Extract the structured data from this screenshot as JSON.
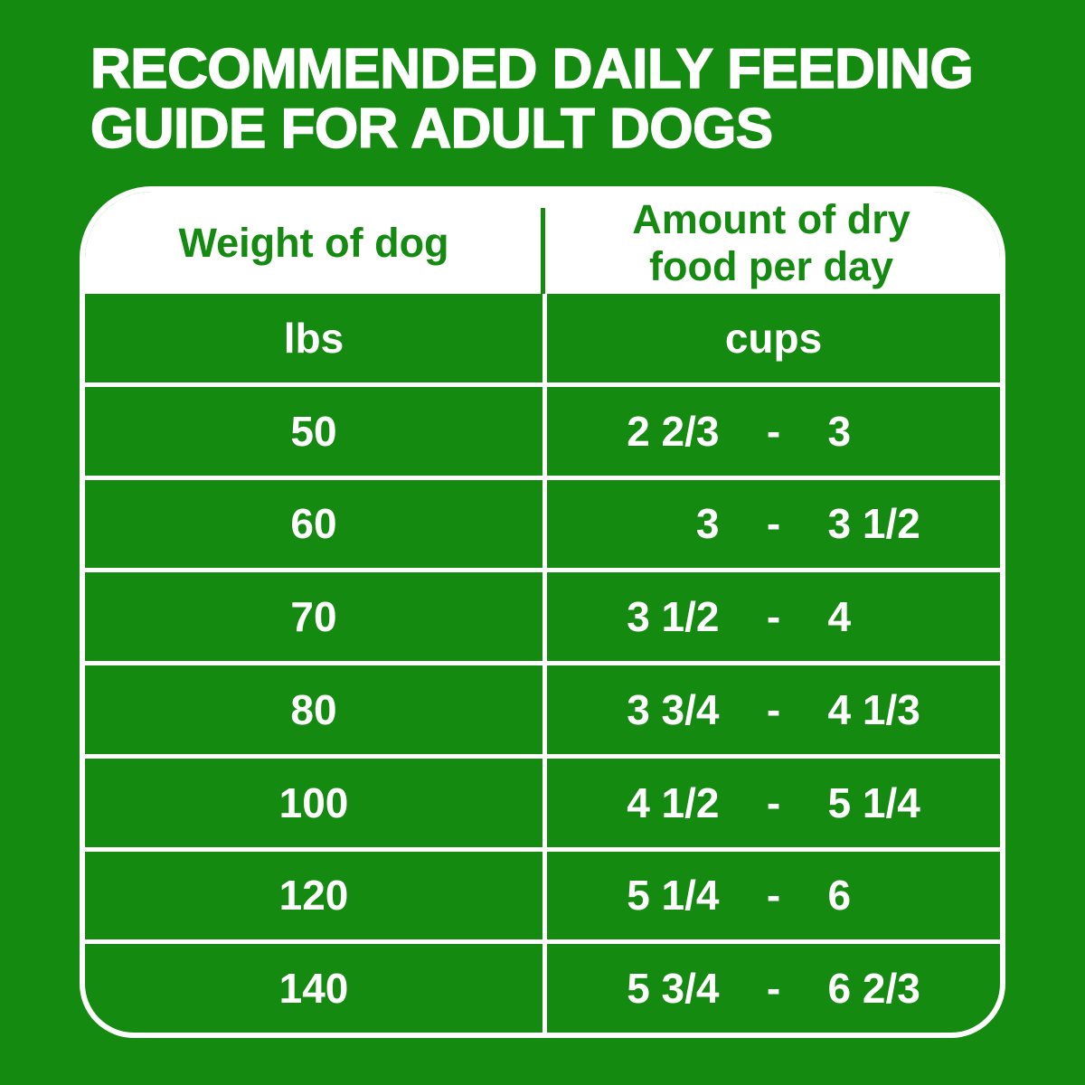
{
  "colors": {
    "background_green": "#148a10",
    "text_white": "#ffffff"
  },
  "title": {
    "line1": "RECOMMENDED DAILY FEEDING",
    "line2": "GUIDE FOR ADULT DOGS"
  },
  "table": {
    "header": {
      "weight_col": "Weight of dog",
      "amount_col_line1": "Amount of dry",
      "amount_col_line2": "food per day"
    },
    "units": {
      "weight": "lbs",
      "amount": "cups"
    },
    "rows": [
      {
        "weight": "50",
        "low": "2 2/3",
        "dash": "-",
        "high": "3"
      },
      {
        "weight": "60",
        "low": "3",
        "dash": "-",
        "high": "3 1/2"
      },
      {
        "weight": "70",
        "low": "3 1/2",
        "dash": "-",
        "high": "4"
      },
      {
        "weight": "80",
        "low": "3 3/4",
        "dash": "-",
        "high": "4 1/3"
      },
      {
        "weight": "100",
        "low": "4 1/2",
        "dash": "-",
        "high": "5 1/4"
      },
      {
        "weight": "120",
        "low": "5 1/4",
        "dash": "-",
        "high": "6"
      },
      {
        "weight": "140",
        "low": "5 3/4",
        "dash": "-",
        "high": "6 2/3"
      }
    ]
  },
  "chart_data": {
    "type": "table",
    "title": "RECOMMENDED DAILY FEEDING GUIDE FOR ADULT DOGS",
    "columns": [
      "Weight of dog (lbs)",
      "Amount of dry food per day (cups)"
    ],
    "rows": [
      [
        "50",
        "2 2/3 - 3"
      ],
      [
        "60",
        "3 - 3 1/2"
      ],
      [
        "70",
        "3 1/2 - 4"
      ],
      [
        "80",
        "3 3/4 - 4 1/3"
      ],
      [
        "100",
        "4 1/2 - 5 1/4"
      ],
      [
        "120",
        "5 1/4 - 6"
      ],
      [
        "140",
        "5 3/4 - 6 2/3"
      ]
    ],
    "weights_lbs": [
      50,
      60,
      70,
      80,
      100,
      120,
      140
    ],
    "cups_low": [
      2.67,
      3,
      3.5,
      3.75,
      4.5,
      5.25,
      5.75
    ],
    "cups_high": [
      3,
      3.5,
      4,
      4.33,
      5.25,
      6,
      6.67
    ]
  }
}
